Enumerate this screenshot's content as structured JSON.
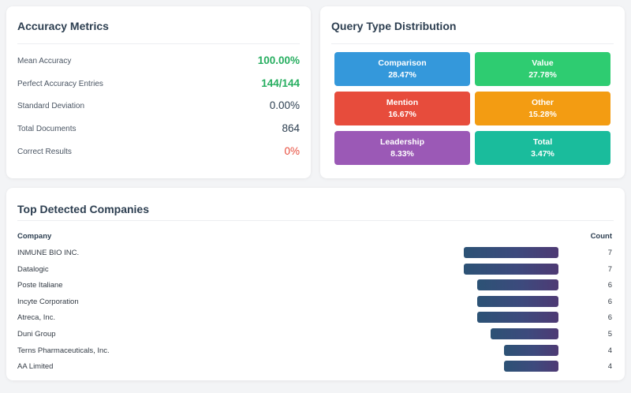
{
  "accuracy": {
    "title": "Accuracy Metrics",
    "metrics": [
      {
        "label": "Mean Accuracy",
        "value": "100.00%",
        "tone": "green"
      },
      {
        "label": "Perfect Accuracy Entries",
        "value": "144/144",
        "tone": "green"
      },
      {
        "label": "Standard Deviation",
        "value": "0.00%",
        "tone": "dark"
      },
      {
        "label": "Total Documents",
        "value": "864",
        "tone": "dark"
      },
      {
        "label": "Correct Results",
        "value": "0%",
        "tone": "red"
      }
    ]
  },
  "query_types": {
    "title": "Query Type Distribution",
    "tiles": [
      {
        "label": "Comparison",
        "value": "28.47%",
        "color": "#3498db"
      },
      {
        "label": "Value",
        "value": "27.78%",
        "color": "#2ecc71"
      },
      {
        "label": "Mention",
        "value": "16.67%",
        "color": "#e74c3c"
      },
      {
        "label": "Other",
        "value": "15.28%",
        "color": "#f39c12"
      },
      {
        "label": "Leadership",
        "value": "8.33%",
        "color": "#9b59b6"
      },
      {
        "label": "Total",
        "value": "3.47%",
        "color": "#1abc9c"
      }
    ]
  },
  "companies": {
    "title": "Top Detected Companies",
    "col_company": "Company",
    "col_count": "Count",
    "max_count": 7,
    "rows": [
      {
        "name": "INMUNE BIO INC.",
        "count": "7"
      },
      {
        "name": "Datalogic",
        "count": "7"
      },
      {
        "name": "Poste Italiane",
        "count": "6"
      },
      {
        "name": "Incyte Corporation",
        "count": "6"
      },
      {
        "name": "Atreca, Inc.",
        "count": "6"
      },
      {
        "name": "Duni Group",
        "count": "5"
      },
      {
        "name": "Terns Pharmaceuticals, Inc.",
        "count": "4"
      },
      {
        "name": "AA Limited",
        "count": "4"
      }
    ]
  }
}
